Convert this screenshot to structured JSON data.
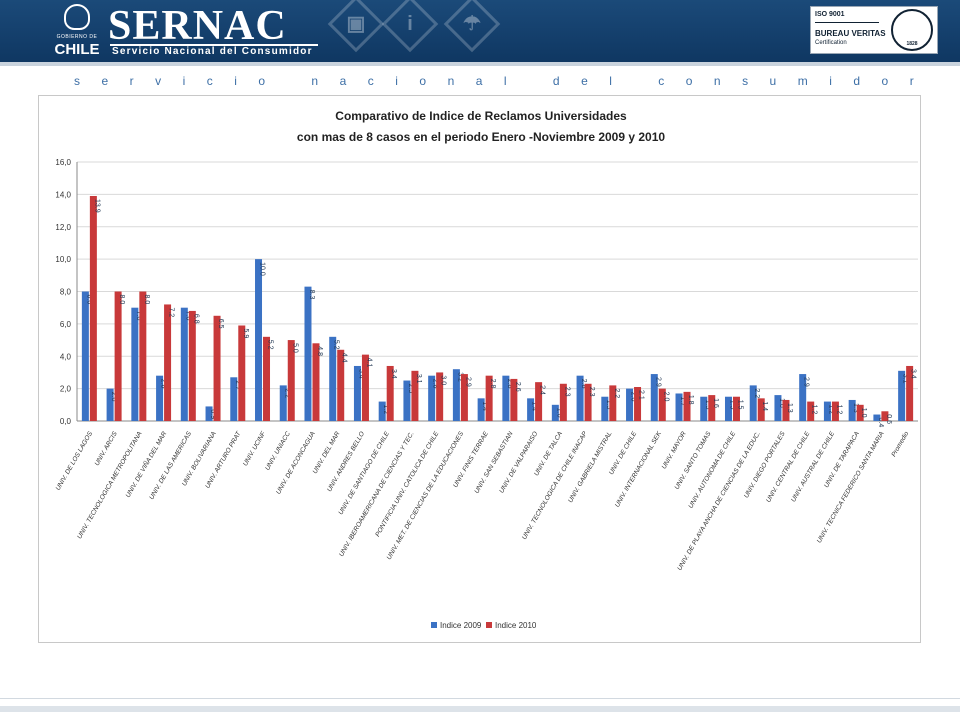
{
  "header": {
    "gov_small": "GOBIERNO DE",
    "gov_name": "CHILE",
    "brand": "SERNAC",
    "subtitle": "Servicio Nacional del Consumidor",
    "cert_iso": "ISO 9001",
    "cert_name": "BUREAU VERITAS",
    "cert_sub": "Certification",
    "cert_year": "1828",
    "deco_icons": [
      "book-icon",
      "info-icon",
      "umbrella-icon"
    ]
  },
  "tagline": [
    "s",
    "e",
    "r",
    "v",
    "i",
    "c",
    "i",
    "o",
    " ",
    "n",
    "a",
    "c",
    "i",
    "o",
    "n",
    "a",
    "l",
    " ",
    "d",
    "e",
    "l",
    " ",
    "c",
    "o",
    "n",
    "s",
    "u",
    "m",
    "i",
    "d",
    "o",
    "r"
  ],
  "colors": {
    "header": "#15426f",
    "series2009": "#3b72c4",
    "series2010": "#c8393a",
    "tagline": "#3d6fa6"
  },
  "chart_data": {
    "type": "bar",
    "title": "Comparativo de Indice de Reclamos Universidades",
    "subtitle": "con mas de 8 casos en el periodo Enero -Noviembre 2009 y  2010",
    "xlabel": "",
    "ylabel": "",
    "ylim": [
      0,
      16
    ],
    "yticks": [
      "0,0",
      "2,0",
      "4,0",
      "6,0",
      "8,0",
      "10,0",
      "12,0",
      "14,0",
      "16,0"
    ],
    "grid": true,
    "legend_position": "bottom",
    "categories": [
      "UNIV. DE LOS LAGOS",
      "UNIV. ARCIS",
      "UNIV. TECNOLOGICA METROPOLITANA",
      "UNIV. DE VIÑA DEL MAR",
      "UNIV. DE LAS AMERICAS",
      "UNIV. BOLIVARIANA",
      "UNIV. ARTURO PRAT",
      "UNIV. UCINF",
      "UNIV. UNIACC",
      "UNIV. DE ACONCAGUA",
      "UNIV. DEL MAR",
      "UNIV. ANDRES BELLO",
      "UNIV. DE SANTIAGO DE CHILE",
      "UNIV. IBEROAMERICANA DE CIENCIAS Y TEC.",
      "PONTIFICIA UNIV. CATOLICA DE CHILE",
      "UNIV. MET. DE CIENCIAS DE LA EDUCACIONES",
      "UNIV. FINIS TERRAE",
      "UNIV. SAN SEBASTIAN",
      "UNIV. DE VALPARAISO",
      "UNIV. DE TALCA",
      "UNIV. TECNOLOGICA DE CHILE INACAP",
      "UNIV. GABRIELA MISTRAL",
      "UNIV. DE CHILE",
      "UNIV. INTERNACIONAL SEK",
      "UNIV. MAYOR",
      "UNIV. SANTO TOMAS",
      "UNIV. AUTONOMA DE CHILE",
      "UNIV. DE PLAYA ANCHA DE CIENCIAS DE LA EDUC.",
      "UNIV. DIEGO PORTALES",
      "UNIV. CENTRAL DE CHILE",
      "UNIV. AUSTRAL DE CHILE",
      "UNIV. DE TARAPACA",
      "UNIV. TECNICA FEDERICO SANTA MARIA",
      "Promedio"
    ],
    "series": [
      {
        "name": "Indice 2009",
        "color": "#3b72c4",
        "values": [
          8.0,
          2.0,
          7.0,
          2.8,
          7.0,
          0.9,
          2.7,
          10.0,
          2.2,
          8.3,
          5.2,
          3.4,
          1.2,
          2.5,
          2.8,
          3.2,
          1.4,
          2.8,
          1.4,
          1.0,
          2.8,
          1.5,
          2.0,
          2.9,
          1.7,
          1.5,
          1.5,
          2.2,
          1.6,
          2.9,
          1.2,
          1.3,
          0.4,
          3.1
        ]
      },
      {
        "name": "Indice 2010",
        "color": "#c8393a",
        "values": [
          13.9,
          8.0,
          8.0,
          7.2,
          6.8,
          6.5,
          5.9,
          5.2,
          5.0,
          4.8,
          4.4,
          4.1,
          3.4,
          3.1,
          3.0,
          2.9,
          2.8,
          2.6,
          2.4,
          2.3,
          2.3,
          2.2,
          2.1,
          2.0,
          1.8,
          1.6,
          1.5,
          1.4,
          1.3,
          1.2,
          1.2,
          1.0,
          0.6,
          3.4
        ]
      }
    ]
  }
}
